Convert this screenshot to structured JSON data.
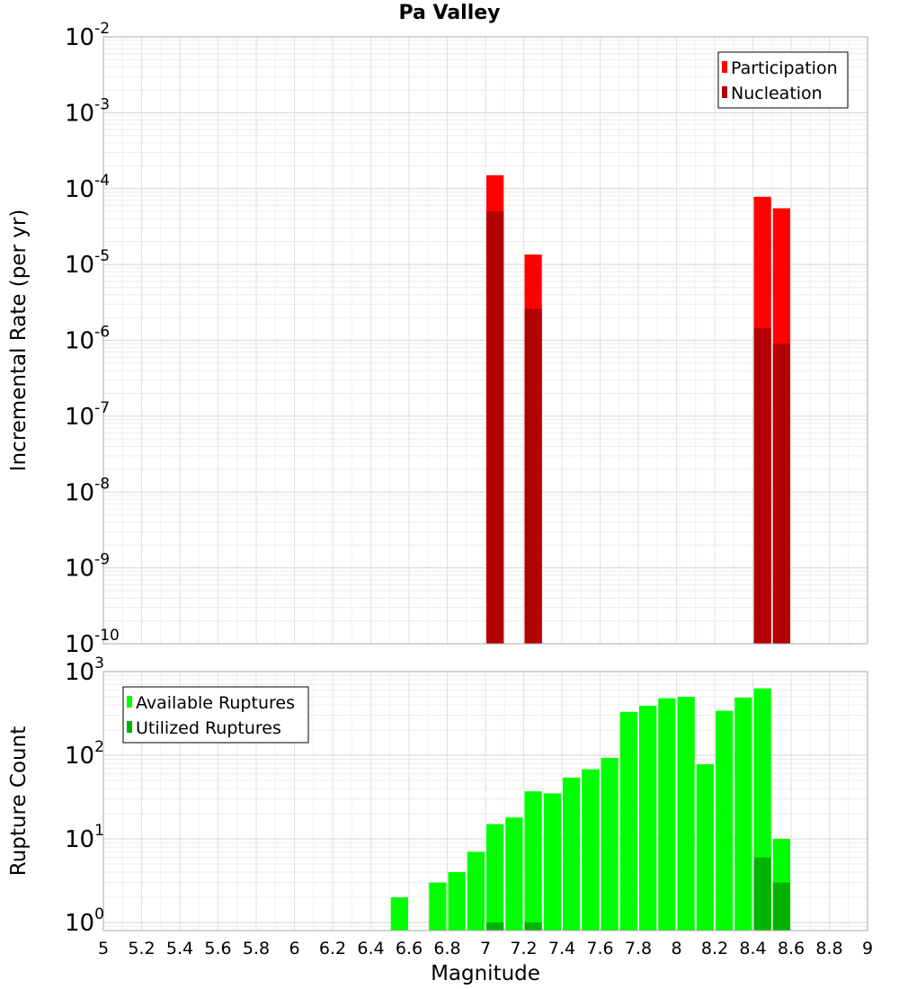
{
  "chart_data": {
    "title": "Pa Valley",
    "xlabel": "Magnitude",
    "x_ticks": [
      "5",
      "5.2",
      "5.4",
      "5.6",
      "5.8",
      "6",
      "6.2",
      "6.4",
      "6.6",
      "6.8",
      "7",
      "7.2",
      "7.4",
      "7.6",
      "7.8",
      "8",
      "8.2",
      "8.4",
      "8.6",
      "8.8",
      "9"
    ],
    "xlim": [
      5,
      9
    ],
    "panels": [
      {
        "type": "bar",
        "yscale": "log",
        "ylabel": "Incremental Rate (per yr)",
        "ylim": [
          1e-10,
          0.01
        ],
        "y_tick_exponents": [
          -10,
          -9,
          -8,
          -7,
          -6,
          -5,
          -4,
          -3,
          -2
        ],
        "legend": {
          "position": "top-right"
        },
        "series": [
          {
            "name": "Participation",
            "color": "#ff0000",
            "x": [
              7.05,
              7.25,
              8.45,
              8.55
            ],
            "values": [
              0.00015,
              1.35e-05,
              7.8e-05,
              5.5e-05
            ]
          },
          {
            "name": "Nucleation",
            "color": "#b30000",
            "x": [
              7.05,
              7.25,
              8.45,
              8.55
            ],
            "values": [
              5e-05,
              2.6e-06,
              1.45e-06,
              9e-07
            ]
          }
        ]
      },
      {
        "type": "bar",
        "yscale": "log",
        "ylabel": "Rupture Count",
        "ylim": [
          0.8,
          1000
        ],
        "y_tick_exponents": [
          0,
          1,
          2,
          3
        ],
        "legend": {
          "position": "top-left"
        },
        "series": [
          {
            "name": "Available Ruptures",
            "color": "#00ff00",
            "x": [
              6.55,
              6.75,
              6.85,
              6.95,
              7.05,
              7.15,
              7.25,
              7.35,
              7.45,
              7.55,
              7.65,
              7.75,
              7.85,
              7.95,
              8.05,
              8.15,
              8.25,
              8.35,
              8.45,
              8.55
            ],
            "values": [
              2,
              3,
              4,
              7,
              15,
              18,
              37,
              35,
              54,
              68,
              93,
              330,
              390,
              480,
              500,
              78,
              340,
              490,
              630,
              10
            ]
          },
          {
            "name": "Utilized Ruptures",
            "color": "#00b300",
            "x": [
              7.05,
              7.25,
              8.45,
              8.55
            ],
            "values": [
              1,
              1,
              6,
              3
            ]
          }
        ]
      }
    ]
  }
}
